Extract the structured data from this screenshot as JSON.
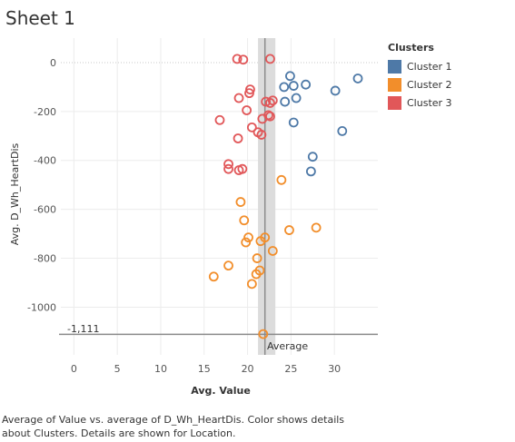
{
  "sheet": {
    "title": "Sheet 1"
  },
  "legend": {
    "title": "Clusters",
    "items": [
      {
        "label": "Cluster 1",
        "color": "#4e79a7"
      },
      {
        "label": "Cluster 2",
        "color": "#f28e2b"
      },
      {
        "label": "Cluster 3",
        "color": "#e15759"
      }
    ]
  },
  "caption": "Average of Value vs. average of D_Wh_HeartDis.  Color shows details about Clusters. Details are shown for Location.",
  "chart_data": {
    "type": "scatter",
    "xlabel": "Avg. Value",
    "ylabel": "Avg. D_Wh_HeartDis",
    "xlim": [
      -1.5,
      35
    ],
    "ylim": [
      -1195,
      100
    ],
    "xticks": [
      0,
      5,
      10,
      15,
      20,
      25,
      30
    ],
    "yticks": [
      0,
      -200,
      -400,
      -600,
      -800,
      -1000
    ],
    "reference_lines": {
      "y": {
        "value": -1111,
        "label": "-1,111"
      },
      "x": {
        "value": 22.0,
        "label": "Average",
        "band": [
          21.2,
          23.2
        ]
      }
    },
    "zero_line": {
      "value": 0,
      "style": "dotted"
    },
    "series": [
      {
        "name": "Cluster 1",
        "color": "#4e79a7",
        "x": [
          24.9,
          24.2,
          25.3,
          26.7,
          32.7,
          30.1,
          25.6,
          24.3,
          25.3,
          30.9,
          27.5,
          27.3
        ],
        "y": [
          -55,
          -100,
          -95,
          -90,
          -65,
          -115,
          -145,
          -160,
          -245,
          -280,
          -385,
          -445
        ]
      },
      {
        "name": "Cluster 2",
        "color": "#f28e2b",
        "x": [
          23.9,
          19.2,
          19.6,
          20.1,
          19.8,
          22.0,
          21.5,
          24.8,
          27.9,
          22.9,
          21.1,
          21.4,
          21.0,
          17.8,
          16.1,
          20.5,
          21.8
        ],
        "y": [
          -480,
          -570,
          -645,
          -715,
          -735,
          -715,
          -730,
          -685,
          -675,
          -770,
          -800,
          -850,
          -865,
          -830,
          -875,
          -905,
          -1110
        ]
      },
      {
        "name": "Cluster 3",
        "color": "#e15759",
        "x": [
          18.8,
          19.5,
          22.6,
          20.3,
          20.2,
          19.0,
          22.9,
          22.6,
          22.1,
          19.9,
          22.4,
          22.6,
          21.7,
          16.8,
          20.5,
          21.2,
          21.6,
          18.9,
          17.8,
          17.8,
          19.0,
          19.4
        ],
        "y": [
          15,
          12,
          15,
          -110,
          -125,
          -145,
          -155,
          -165,
          -160,
          -195,
          -215,
          -220,
          -230,
          -235,
          -265,
          -285,
          -295,
          -310,
          -415,
          -435,
          -440,
          -435
        ]
      }
    ]
  }
}
